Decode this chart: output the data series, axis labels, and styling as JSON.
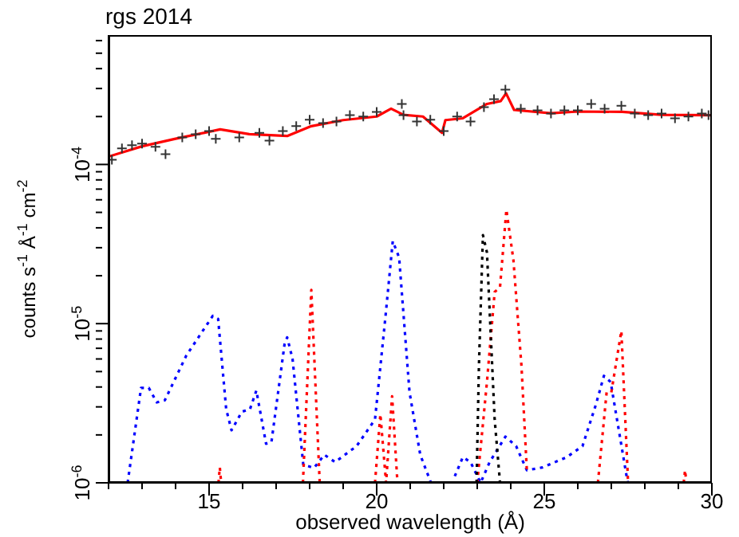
{
  "chart_data": {
    "type": "line",
    "title": "rgs 2014",
    "xlabel": "observed wavelength (Å)",
    "ylabel": "counts s$^{-1}$ Å$^{-1}$ cm$^{-2}$",
    "log": "y",
    "grid": false,
    "xlim": [
      12,
      30
    ],
    "xticks": [
      {
        "value": 12,
        "label": null
      },
      {
        "value": 13,
        "label": null
      },
      {
        "value": 14,
        "label": null
      },
      15,
      {
        "value": 16,
        "label": null
      },
      {
        "value": 17,
        "label": null
      },
      {
        "value": 18,
        "label": null
      },
      {
        "value": 19,
        "label": null
      },
      20,
      {
        "value": 21,
        "label": null
      },
      {
        "value": 22,
        "label": null
      },
      {
        "value": 23,
        "label": null
      },
      {
        "value": 24,
        "label": null
      },
      25,
      {
        "value": 26,
        "label": null
      },
      {
        "value": 27,
        "label": null
      },
      {
        "value": 28,
        "label": null
      },
      {
        "value": 29,
        "label": null
      },
      30
    ],
    "ylim": [
      1e-06,
      0.00065
    ],
    "yticks": [
      {
        "value": 1e-06,
        "label": "10$^{-6}$"
      },
      {
        "value": 2e-06,
        "label": null
      },
      {
        "value": 3e-06,
        "label": null
      },
      {
        "value": 4e-06,
        "label": null
      },
      {
        "value": 5e-06,
        "label": null
      },
      {
        "value": 6e-06,
        "label": null
      },
      {
        "value": 7e-06,
        "label": null
      },
      {
        "value": 8e-06,
        "label": null
      },
      {
        "value": 9e-06,
        "label": null
      },
      {
        "value": 1e-05,
        "label": "10$^{-5}$"
      },
      {
        "value": 2e-05,
        "label": null
      },
      {
        "value": 3e-05,
        "label": null
      },
      {
        "value": 4e-05,
        "label": null
      },
      {
        "value": 5e-05,
        "label": null
      },
      {
        "value": 6e-05,
        "label": null
      },
      {
        "value": 7e-05,
        "label": null
      },
      {
        "value": 8e-05,
        "label": null
      },
      {
        "value": 9e-05,
        "label": null
      },
      {
        "value": 0.0001,
        "label": "10$^{-4}$"
      },
      {
        "value": 0.0002,
        "label": null
      },
      {
        "value": 0.0003,
        "label": null
      },
      {
        "value": 0.0004,
        "label": null
      },
      {
        "value": 0.0005,
        "label": null
      },
      {
        "value": 0.0006,
        "label": null
      }
    ],
    "series": [
      {
        "type": "scatter",
        "marker": "cross",
        "color": "#333333",
        "x": [
          12.1,
          12.4,
          12.7,
          13.0,
          13.4,
          13.7,
          14.2,
          14.6,
          15.0,
          15.2,
          15.9,
          16.5,
          16.8,
          17.2,
          17.6,
          18.0,
          18.4,
          18.8,
          19.2,
          19.6,
          20.0,
          20.75,
          20.8,
          21.2,
          21.6,
          22.0,
          22.4,
          22.8,
          23.2,
          23.5,
          23.84,
          24.3,
          24.8,
          25.2,
          25.6,
          26.0,
          26.4,
          26.8,
          27.3,
          27.7,
          28.1,
          28.5,
          28.9,
          29.3,
          29.7,
          29.9
        ],
        "values": [
          0.000107,
          0.000126,
          0.000132,
          0.000135,
          0.000129,
          0.000116,
          0.000148,
          0.000155,
          0.000162,
          0.000145,
          0.000148,
          0.000158,
          0.000141,
          0.000162,
          0.000174,
          0.000191,
          0.000182,
          0.000186,
          0.000204,
          0.0002,
          0.000214,
          0.00024,
          0.000204,
          0.000186,
          0.000191,
          0.000162,
          0.0002,
          0.000186,
          0.000229,
          0.000257,
          0.000295,
          0.000224,
          0.000219,
          0.000209,
          0.000219,
          0.000219,
          0.00024,
          0.000224,
          0.000234,
          0.000209,
          0.000204,
          0.000209,
          0.000195,
          0.0002,
          0.000209,
          0.000204
        ]
      },
      {
        "marker": "none",
        "line_style": "solid",
        "color": "#ff0000",
        "x": [
          12,
          13.0,
          14.0,
          15.33,
          16.2,
          17.33,
          18.05,
          19.0,
          20.0,
          20.43,
          20.8,
          21.38,
          21.95,
          22.05,
          22.57,
          23.29,
          23.7,
          23.86,
          24.1,
          25.2,
          26.0,
          27.33,
          28.5,
          30
        ],
        "values": [
          0.000112,
          0.00013,
          0.000145,
          0.000166,
          0.000155,
          0.000151,
          0.000174,
          0.00019,
          0.0002,
          0.000224,
          0.000205,
          0.0002,
          0.000158,
          0.00019,
          0.000195,
          0.00024,
          0.00025,
          0.00028,
          0.00022,
          0.00021,
          0.000215,
          0.000214,
          0.000205,
          0.000204
        ]
      },
      {
        "marker": "none",
        "line_style": "dotted",
        "color": "#0000ff",
        "x": [
          12.57,
          12.97,
          13.2,
          13.44,
          13.68,
          14.32,
          15.11,
          15.27,
          15.51,
          15.67,
          15.98,
          16.22,
          16.41,
          16.7,
          16.86,
          17.25,
          17.33,
          17.49,
          17.81,
          18.13,
          18.44,
          18.76,
          19.4,
          19.95,
          20.27,
          20.48,
          20.67,
          20.98,
          21.3,
          21.62,
          22.0,
          22.33,
          22.57,
          22.8,
          23.1,
          23.37,
          23.84,
          24.16,
          24.48,
          24.95,
          25.67,
          26.14,
          26.54,
          26.78,
          26.98,
          27.17,
          27.49
        ],
        "values": [
          1e-06,
          3.95e-06,
          3.95e-06,
          3.2e-06,
          3.3e-06,
          6.3e-06,
          1.12e-05,
          1.07e-05,
          2.9e-06,
          2.14e-06,
          2.8e-06,
          2.9e-06,
          3.8e-06,
          1.76e-06,
          1.8e-06,
          7.4e-06,
          8.2e-06,
          6e-06,
          1.3e-06,
          1.24e-06,
          1.5e-06,
          1.35e-06,
          1.7e-06,
          2.5e-06,
          1.15e-05,
          3.3e-05,
          2.6e-05,
          3.7e-06,
          1.5e-06,
          1e-06,
          null,
          1.1e-06,
          1.45e-06,
          1.35e-06,
          1e-06,
          1.35e-06,
          1.95e-06,
          1.7e-06,
          1.2e-06,
          1.25e-06,
          1.45e-06,
          1.7e-06,
          3.1e-06,
          4.7e-06,
          4.3e-06,
          2.5e-06,
          1e-06
        ]
      },
      {
        "marker": "none",
        "line_style": "dotted",
        "color": "#ff0000",
        "x": [
          15.28,
          15.32,
          15.36,
          15.4,
          17.8,
          18.05,
          18.3,
          18.5,
          19.95,
          20.11,
          20.28,
          20.46,
          20.62,
          20.8,
          23.0,
          23.29,
          23.52,
          23.68,
          23.87,
          24.08,
          24.32,
          24.48,
          25,
          26.6,
          26.86,
          27.0,
          27.3,
          27.5,
          28,
          29.16,
          29.2,
          29.24
        ],
        "values": [
          1e-06,
          1.25e-06,
          1e-06,
          null,
          1e-06,
          1.63e-05,
          1e-06,
          null,
          1e-06,
          2.7e-06,
          1e-06,
          3.5e-06,
          1e-06,
          null,
          1e-06,
          4.3e-06,
          1.58e-05,
          1.7e-05,
          5.2e-05,
          2.5e-05,
          5.4e-06,
          1.2e-06,
          null,
          1e-06,
          3.7e-06,
          3.7e-06,
          9e-06,
          1e-06,
          null,
          1e-06,
          1.2e-06,
          1e-06
        ]
      },
      {
        "marker": "none",
        "line_style": "dotted",
        "color": "#000000",
        "x": [
          22.98,
          23.05,
          23.17,
          23.29,
          23.52,
          23.68
        ],
        "values": [
          1e-06,
          5.4e-06,
          3.6e-05,
          2.8e-05,
          2.5e-06,
          1e-06
        ]
      }
    ]
  }
}
